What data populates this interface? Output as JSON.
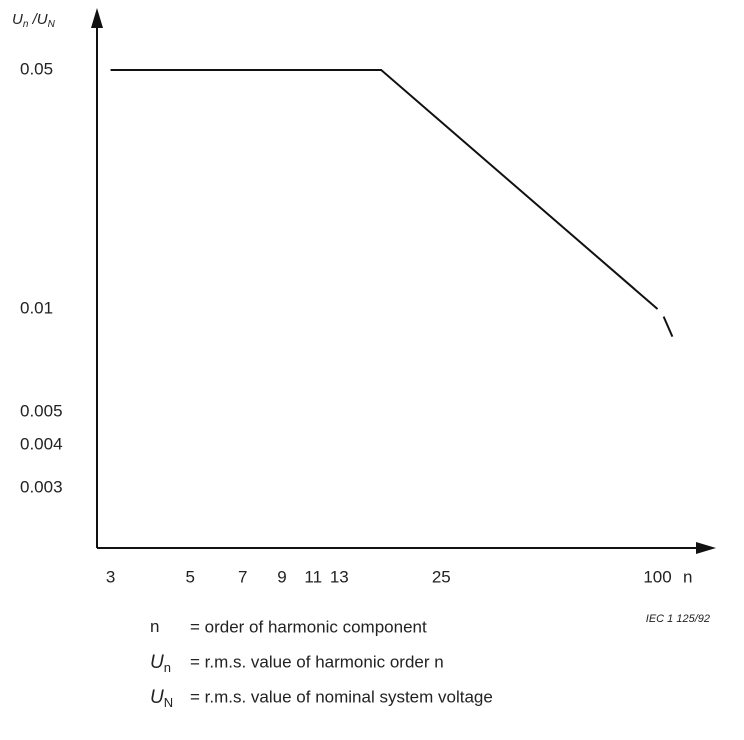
{
  "chart_data": {
    "type": "line",
    "y_label": [
      "U",
      "n",
      " /U",
      "N"
    ],
    "x_label": "n",
    "source": "IEC 1 125/92",
    "log_x": true,
    "log_y": true,
    "xlim": [
      2.75,
      140
    ],
    "ylim": [
      0.002,
      0.07
    ],
    "xticks": [
      3,
      5,
      7,
      9,
      11,
      13,
      25,
      100
    ],
    "yticks": [
      0.05,
      0.01,
      0.005,
      0.004,
      0.003
    ],
    "series": [
      {
        "color": "#111",
        "x": [
          3,
          17,
          100,
          null,
          104,
          110
        ],
        "values": [
          0.05,
          0.05,
          0.01,
          null,
          0.0095,
          0.0083
        ]
      }
    ],
    "notes": [
      {
        "symbol": "n",
        "text": "= order of harmonic component"
      },
      {
        "symbol": "U",
        "sub": "n",
        "text": "= r.m.s. value of  harmonic order n"
      },
      {
        "symbol": "U",
        "sub": "N",
        "text": "= r.m.s. value of nominal system voltage"
      }
    ]
  }
}
